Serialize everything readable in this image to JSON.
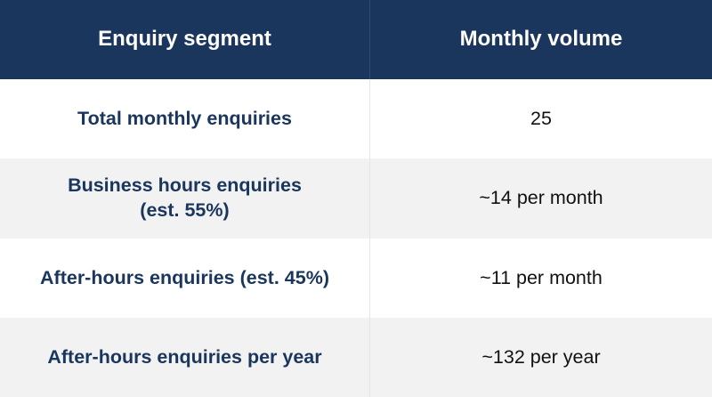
{
  "table": {
    "headers": [
      "Enquiry segment",
      "Monthly volume"
    ],
    "rows": [
      {
        "segment": "Total monthly enquiries",
        "volume": "25"
      },
      {
        "segment": "Business hours enquiries\n(est. 55%)",
        "volume": "~14 per month"
      },
      {
        "segment": "After-hours enquiries (est. 45%)",
        "volume": "~11 per month"
      },
      {
        "segment": "After-hours enquiries per year",
        "volume": "~132 per year"
      }
    ]
  },
  "colors": {
    "header_bg": "#1b365d",
    "header_text": "#ffffff",
    "segment_text": "#1b365d",
    "stripe_bg": "#f2f2f2"
  }
}
